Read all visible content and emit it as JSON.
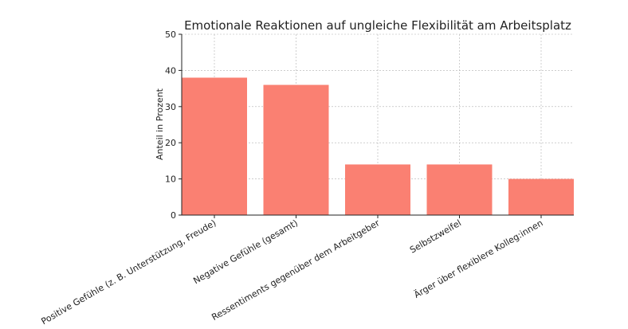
{
  "chart_data": {
    "type": "bar",
    "title": "Emotionale Reaktionen auf ungleiche Flexibilität am Arbeitsplatz",
    "xlabel": "",
    "ylabel": "Anteil in Prozent",
    "categories": [
      "Positive Gefühle (z. B. Unterstützung, Freude)",
      "Negative Gefühle (gesamt)",
      "Ressentiments gegenüber dem Arbeitgeber",
      "Selbstzweifel",
      "Ärger über flexiblere Kolleg:innen"
    ],
    "values": [
      38,
      36,
      14,
      14,
      10
    ],
    "ylim": [
      0,
      50
    ],
    "yticks": [
      0,
      10,
      20,
      30,
      40,
      50
    ],
    "grid": true,
    "bar_color": "#fa8072",
    "grid_color": "#b0b0b0",
    "axis_color": "#222222"
  }
}
